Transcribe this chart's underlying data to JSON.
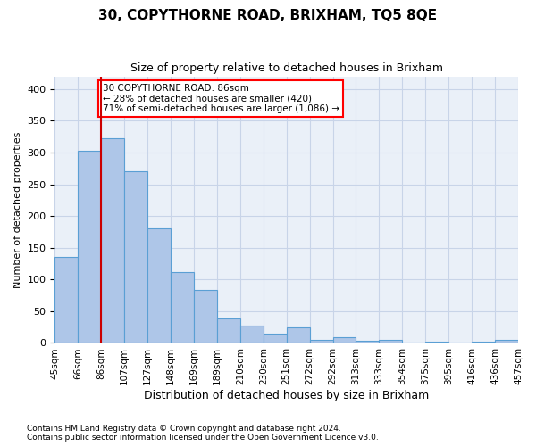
{
  "title": "30, COPYTHORNE ROAD, BRIXHAM, TQ5 8QE",
  "subtitle": "Size of property relative to detached houses in Brixham",
  "xlabel": "Distribution of detached houses by size in Brixham",
  "ylabel": "Number of detached properties",
  "categories": [
    "45sqm",
    "66sqm",
    "86sqm",
    "107sqm",
    "127sqm",
    "148sqm",
    "169sqm",
    "189sqm",
    "210sqm",
    "230sqm",
    "251sqm",
    "272sqm",
    "292sqm",
    "313sqm",
    "333sqm",
    "354sqm",
    "375sqm",
    "395sqm",
    "416sqm",
    "436sqm",
    "457sqm"
  ],
  "values": [
    135,
    303,
    323,
    270,
    181,
    112,
    83,
    38,
    27,
    15,
    24,
    5,
    9,
    4,
    5,
    1,
    2,
    1,
    2,
    5
  ],
  "bar_color": "#aec6e8",
  "bar_edge_color": "#5a9fd4",
  "highlight_color": "#cc0000",
  "annotation_text": "30 COPYTHORNE ROAD: 86sqm\n← 28% of detached houses are smaller (420)\n71% of semi-detached houses are larger (1,086) →",
  "ylim": [
    0,
    420
  ],
  "yticks": [
    0,
    50,
    100,
    150,
    200,
    250,
    300,
    350,
    400
  ],
  "footer_line1": "Contains HM Land Registry data © Crown copyright and database right 2024.",
  "footer_line2": "Contains public sector information licensed under the Open Government Licence v3.0.",
  "background_color": "#ffffff",
  "axes_bg_color": "#eaf0f8",
  "grid_color": "#c8d4e8"
}
